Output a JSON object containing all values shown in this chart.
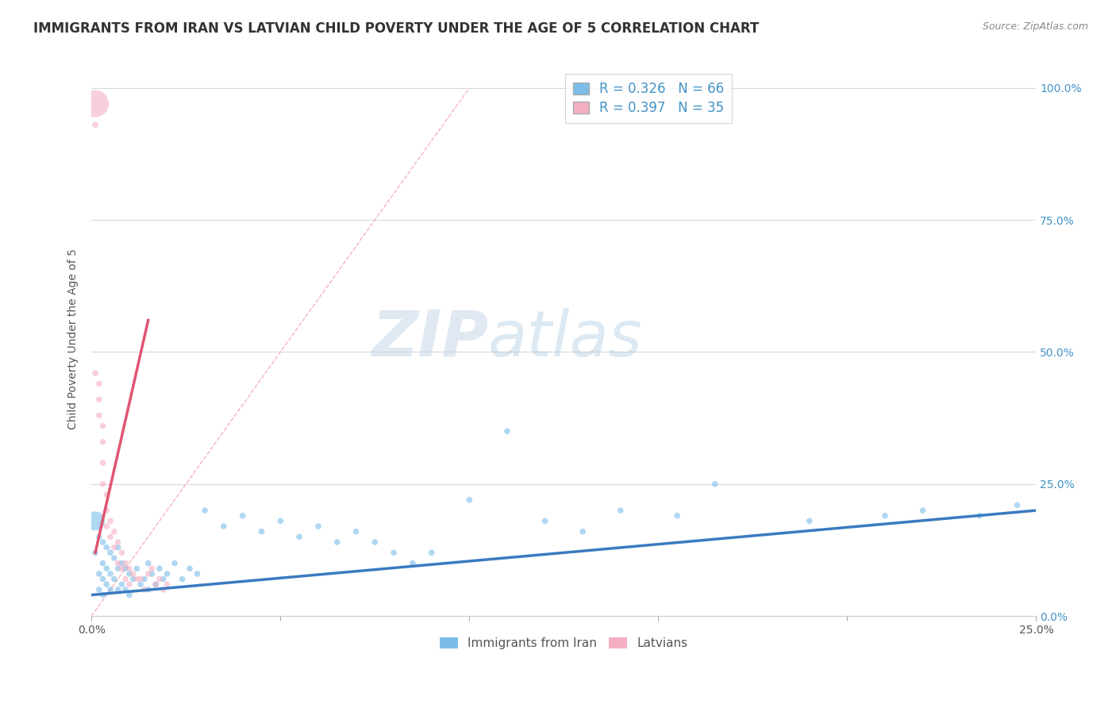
{
  "title": "IMMIGRANTS FROM IRAN VS LATVIAN CHILD POVERTY UNDER THE AGE OF 5 CORRELATION CHART",
  "source": "Source: ZipAtlas.com",
  "ylabel": "Child Poverty Under the Age of 5",
  "xlim": [
    0.0,
    0.25
  ],
  "ylim": [
    0.0,
    1.05
  ],
  "xtick_vals": [
    0.0,
    0.05,
    0.1,
    0.15,
    0.2,
    0.25
  ],
  "xtick_labels_ends": {
    "0.0": "0.0%",
    "0.25": "25.0%"
  },
  "ytick_vals": [
    0.0,
    0.25,
    0.5,
    0.75,
    1.0
  ],
  "ytick_labels_right": [
    "0.0%",
    "25.0%",
    "50.0%",
    "75.0%",
    "100.0%"
  ],
  "legend_r1": "R = 0.326",
  "legend_n1": "N = 66",
  "legend_r2": "R = 0.397",
  "legend_n2": "N = 35",
  "color_blue": "#7bbde8",
  "color_pink": "#f4afc3",
  "color_blue_line": "#3a7bbf",
  "color_pink_line": "#e05570",
  "color_diag": "#f4a0a8",
  "watermark_zip": "ZIP",
  "watermark_atlas": "atlas",
  "series1_label": "Immigrants from Iran",
  "series2_label": "Latvians",
  "blue_scatter_x": [
    0.001,
    0.001,
    0.002,
    0.002,
    0.002,
    0.003,
    0.003,
    0.003,
    0.003,
    0.004,
    0.004,
    0.004,
    0.005,
    0.005,
    0.005,
    0.006,
    0.006,
    0.007,
    0.007,
    0.007,
    0.008,
    0.008,
    0.009,
    0.009,
    0.01,
    0.01,
    0.011,
    0.012,
    0.013,
    0.014,
    0.015,
    0.015,
    0.016,
    0.017,
    0.018,
    0.019,
    0.02,
    0.022,
    0.024,
    0.026,
    0.028,
    0.03,
    0.035,
    0.04,
    0.045,
    0.05,
    0.055,
    0.06,
    0.065,
    0.07,
    0.075,
    0.08,
    0.085,
    0.09,
    0.1,
    0.11,
    0.12,
    0.13,
    0.14,
    0.155,
    0.165,
    0.19,
    0.21,
    0.22,
    0.235,
    0.245
  ],
  "blue_scatter_y": [
    0.18,
    0.12,
    0.15,
    0.08,
    0.05,
    0.14,
    0.1,
    0.07,
    0.04,
    0.13,
    0.09,
    0.06,
    0.12,
    0.08,
    0.05,
    0.11,
    0.07,
    0.13,
    0.09,
    0.05,
    0.1,
    0.06,
    0.09,
    0.05,
    0.08,
    0.04,
    0.07,
    0.09,
    0.06,
    0.07,
    0.1,
    0.05,
    0.08,
    0.06,
    0.09,
    0.07,
    0.08,
    0.1,
    0.07,
    0.09,
    0.08,
    0.2,
    0.17,
    0.19,
    0.16,
    0.18,
    0.15,
    0.17,
    0.14,
    0.16,
    0.14,
    0.12,
    0.1,
    0.12,
    0.22,
    0.35,
    0.18,
    0.16,
    0.2,
    0.19,
    0.25,
    0.18,
    0.19,
    0.2,
    0.19,
    0.21
  ],
  "blue_scatter_size": [
    300,
    30,
    30,
    30,
    30,
    30,
    30,
    30,
    30,
    30,
    30,
    30,
    30,
    30,
    30,
    30,
    30,
    30,
    30,
    30,
    30,
    30,
    30,
    30,
    30,
    30,
    30,
    30,
    30,
    30,
    30,
    30,
    30,
    30,
    30,
    30,
    30,
    30,
    30,
    30,
    30,
    30,
    30,
    30,
    30,
    30,
    30,
    30,
    30,
    30,
    30,
    30,
    30,
    30,
    30,
    30,
    30,
    30,
    30,
    30,
    30,
    30,
    30,
    30,
    30,
    30
  ],
  "pink_scatter_x": [
    0.001,
    0.001,
    0.001,
    0.002,
    0.002,
    0.002,
    0.003,
    0.003,
    0.003,
    0.003,
    0.004,
    0.004,
    0.004,
    0.005,
    0.005,
    0.006,
    0.006,
    0.007,
    0.007,
    0.008,
    0.008,
    0.009,
    0.009,
    0.01,
    0.01,
    0.011,
    0.012,
    0.013,
    0.014,
    0.015,
    0.016,
    0.017,
    0.018,
    0.019,
    0.02
  ],
  "pink_scatter_y": [
    0.97,
    0.93,
    0.46,
    0.44,
    0.41,
    0.38,
    0.36,
    0.33,
    0.29,
    0.25,
    0.23,
    0.2,
    0.17,
    0.18,
    0.15,
    0.16,
    0.13,
    0.14,
    0.1,
    0.12,
    0.09,
    0.1,
    0.07,
    0.09,
    0.06,
    0.08,
    0.07,
    0.07,
    0.05,
    0.08,
    0.09,
    0.06,
    0.07,
    0.05,
    0.06
  ],
  "pink_scatter_size": [
    600,
    30,
    30,
    30,
    30,
    30,
    30,
    30,
    30,
    30,
    30,
    30,
    30,
    30,
    30,
    30,
    30,
    30,
    30,
    30,
    30,
    30,
    30,
    30,
    30,
    30,
    30,
    30,
    30,
    30,
    30,
    30,
    30,
    30,
    30
  ],
  "blue_trend": [
    0.0,
    0.25,
    0.04,
    0.2
  ],
  "pink_trend": [
    0.001,
    0.015,
    0.12,
    0.56
  ],
  "diag_line": [
    0.0,
    0.1,
    0.0,
    1.0
  ],
  "grid_color": "#d8d8d8",
  "background_color": "#ffffff",
  "title_fontsize": 12,
  "axis_label_fontsize": 10
}
